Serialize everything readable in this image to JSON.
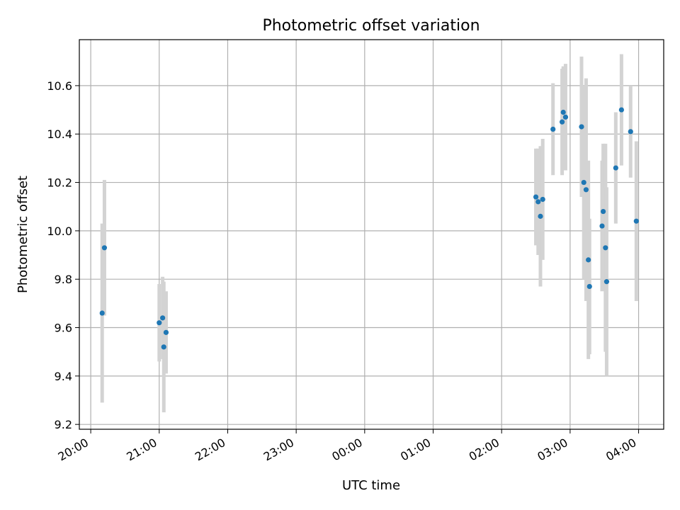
{
  "chart_data": {
    "type": "scatter",
    "title": "Photometric offset variation",
    "xlabel": "UTC time",
    "ylabel": "Photometric offset",
    "x_unit": "time",
    "xlim": [
      "19:50",
      "04:22"
    ],
    "ylim": [
      9.18,
      10.79
    ],
    "x_ticks": [
      "20:00",
      "21:00",
      "22:00",
      "23:00",
      "00:00",
      "01:00",
      "02:00",
      "03:00",
      "04:00"
    ],
    "y_ticks": [
      9.2,
      9.4,
      9.6,
      9.8,
      10.0,
      10.2,
      10.4,
      10.6
    ],
    "y_tick_labels": [
      "9.2",
      "9.4",
      "9.6",
      "9.8",
      "10.0",
      "10.2",
      "10.4",
      "10.6"
    ],
    "grid": true,
    "colors": {
      "point": "#1f77b4",
      "errorbar": "#d3d3d3",
      "grid": "#b0b0b0"
    },
    "points": [
      {
        "x": "20:10",
        "y": 9.66,
        "err": 0.37
      },
      {
        "x": "20:12",
        "y": 9.93,
        "err": 0.28
      },
      {
        "x": "21:00",
        "y": 9.62,
        "err": 0.16
      },
      {
        "x": "21:03",
        "y": 9.64,
        "err": 0.17
      },
      {
        "x": "21:04",
        "y": 9.52,
        "err": 0.27
      },
      {
        "x": "21:06",
        "y": 9.58,
        "err": 0.17
      },
      {
        "x": "02:30",
        "y": 10.14,
        "err": 0.2
      },
      {
        "x": "02:32",
        "y": 10.12,
        "err": 0.22
      },
      {
        "x": "02:34",
        "y": 10.06,
        "err": 0.29
      },
      {
        "x": "02:36",
        "y": 10.13,
        "err": 0.25
      },
      {
        "x": "02:45",
        "y": 10.42,
        "err": 0.19
      },
      {
        "x": "02:53",
        "y": 10.45,
        "err": 0.22
      },
      {
        "x": "02:54",
        "y": 10.49,
        "err": 0.19
      },
      {
        "x": "02:56",
        "y": 10.47,
        "err": 0.22
      },
      {
        "x": "03:10",
        "y": 10.43,
        "err": 0.29
      },
      {
        "x": "03:12",
        "y": 10.2,
        "err": 0.4
      },
      {
        "x": "03:14",
        "y": 10.17,
        "err": 0.46
      },
      {
        "x": "03:16",
        "y": 9.88,
        "err": 0.41
      },
      {
        "x": "03:17",
        "y": 9.77,
        "err": 0.28
      },
      {
        "x": "03:28",
        "y": 10.02,
        "err": 0.27
      },
      {
        "x": "03:29",
        "y": 10.08,
        "err": 0.28
      },
      {
        "x": "03:31",
        "y": 9.93,
        "err": 0.43
      },
      {
        "x": "03:32",
        "y": 9.79,
        "err": 0.39
      },
      {
        "x": "03:40",
        "y": 10.26,
        "err": 0.23
      },
      {
        "x": "03:45",
        "y": 10.5,
        "err": 0.23
      },
      {
        "x": "03:53",
        "y": 10.41,
        "err": 0.19
      },
      {
        "x": "03:58",
        "y": 10.04,
        "err": 0.33
      }
    ]
  }
}
